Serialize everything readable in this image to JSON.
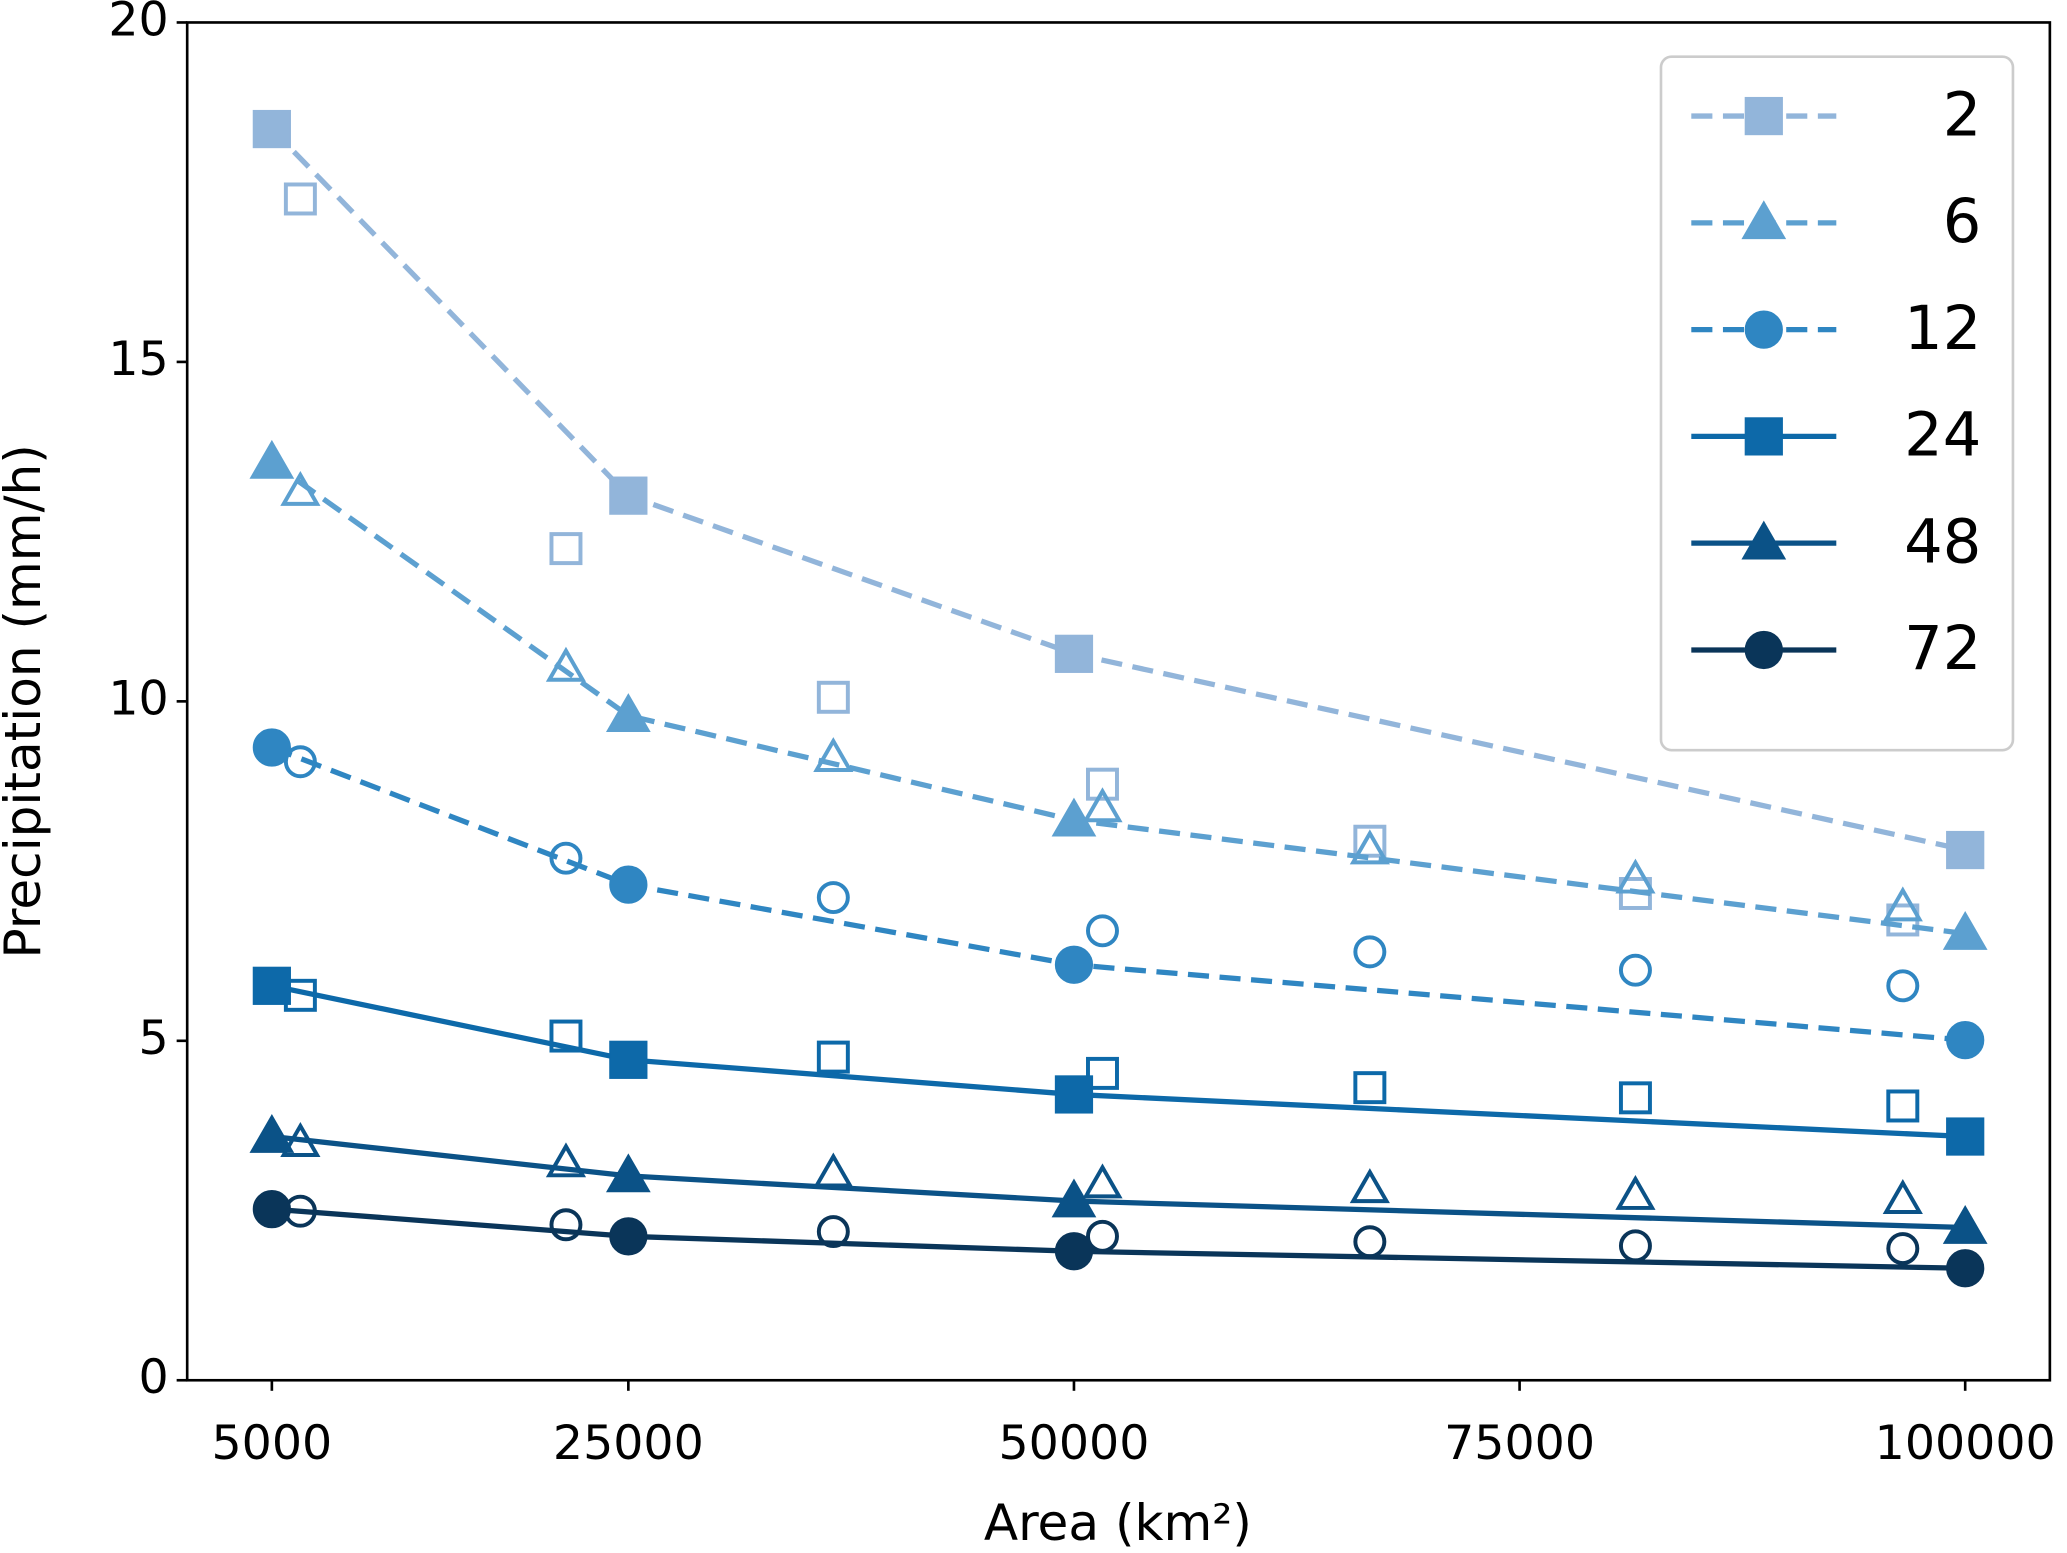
{
  "chart_data": {
    "type": "line",
    "x_label": "Area (km²)",
    "y_label": "Precipitation (mm/h)",
    "x": [
      5000,
      25000,
      50000,
      100000
    ],
    "x_open": [
      6600,
      21500,
      36500,
      51600,
      66600,
      81500,
      96500
    ],
    "xlim": [
      250,
      104750
    ],
    "xticks": [
      5000,
      25000,
      50000,
      75000,
      100000
    ],
    "ylim": [
      0,
      20
    ],
    "yticks": [
      0,
      5,
      10,
      15,
      20
    ],
    "legend_loc": "upper right",
    "series": [
      {
        "name": "2",
        "color": "#92b5da",
        "marker": "square",
        "dashed": true,
        "values": [
          18.43,
          13.03,
          10.7,
          7.81
        ],
        "open_values": [
          17.4,
          12.25,
          10.06,
          8.78,
          7.94,
          7.17,
          6.78
        ]
      },
      {
        "name": "6",
        "color": "#5ca0d0",
        "marker": "triangle",
        "dashed": true,
        "values": [
          13.52,
          9.79,
          8.25,
          6.58
        ],
        "open_values": [
          13.09,
          10.5,
          9.17,
          8.43,
          7.81,
          7.38,
          6.97
        ]
      },
      {
        "name": "12",
        "color": "#2f86c2",
        "marker": "circle",
        "dashed": true,
        "values": [
          9.32,
          7.3,
          6.12,
          5.01
        ],
        "open_values": [
          9.11,
          7.69,
          7.11,
          6.62,
          6.31,
          6.04,
          5.81
        ]
      },
      {
        "name": "24",
        "color": "#0d69a9",
        "marker": "square",
        "dashed": false,
        "values": [
          5.81,
          4.72,
          4.21,
          3.59
        ],
        "open_values": [
          5.67,
          5.07,
          4.76,
          4.52,
          4.31,
          4.16,
          4.04
        ]
      },
      {
        "name": "48",
        "color": "#0b5287",
        "marker": "triangle",
        "dashed": false,
        "values": [
          3.59,
          3.01,
          2.64,
          2.25
        ],
        "open_values": [
          3.5,
          3.2,
          3.05,
          2.89,
          2.82,
          2.72,
          2.66
        ]
      },
      {
        "name": "72",
        "color": "#0a3559",
        "marker": "circle",
        "dashed": false,
        "values": [
          2.52,
          2.12,
          1.9,
          1.65
        ],
        "open_values": [
          2.49,
          2.29,
          2.19,
          2.12,
          2.04,
          1.98,
          1.94
        ]
      }
    ]
  }
}
